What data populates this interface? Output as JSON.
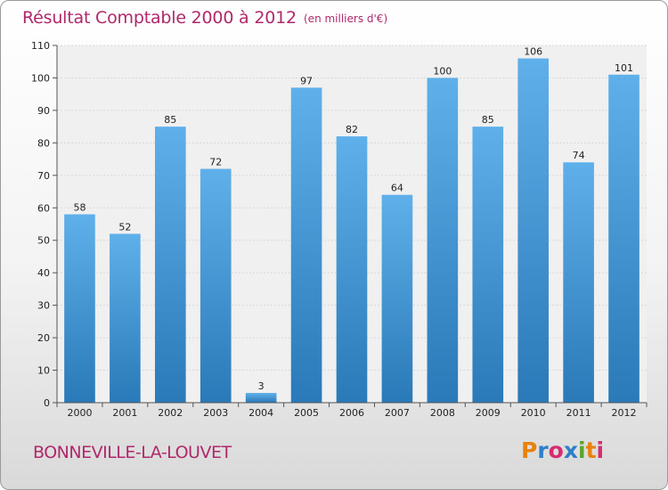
{
  "title": "Résultat Comptable 2000 à 2012",
  "unit": "(en milliers d'€)",
  "commune": "BONNEVILLE-LA-LOUVET",
  "logo": {
    "text": "Proxiti",
    "letters": [
      "P",
      "r",
      "o",
      "x",
      "i",
      "t",
      "i"
    ],
    "colors": [
      "#e8820e",
      "#2d7fc9",
      "#d62d70",
      "#2d7fc9",
      "#5aa62a",
      "#e8820e",
      "#d62d70"
    ]
  },
  "colors": {
    "bar_top": "#5fb0ea",
    "bar_bottom": "#2a79b8",
    "title": "#b0286b"
  },
  "chart_data": {
    "type": "bar",
    "categories": [
      "2000",
      "2001",
      "2002",
      "2003",
      "2004",
      "2005",
      "2006",
      "2007",
      "2008",
      "2009",
      "2010",
      "2011",
      "2012"
    ],
    "values": [
      58,
      52,
      85,
      72,
      3,
      97,
      82,
      64,
      100,
      85,
      106,
      74,
      101
    ],
    "title": "Résultat Comptable 2000 à 2012",
    "xlabel": "",
    "ylabel": "",
    "ylim": [
      0,
      110
    ],
    "yticks": [
      0,
      10,
      20,
      30,
      40,
      50,
      60,
      70,
      80,
      90,
      100,
      110
    ],
    "grid": true,
    "legend": "none"
  }
}
